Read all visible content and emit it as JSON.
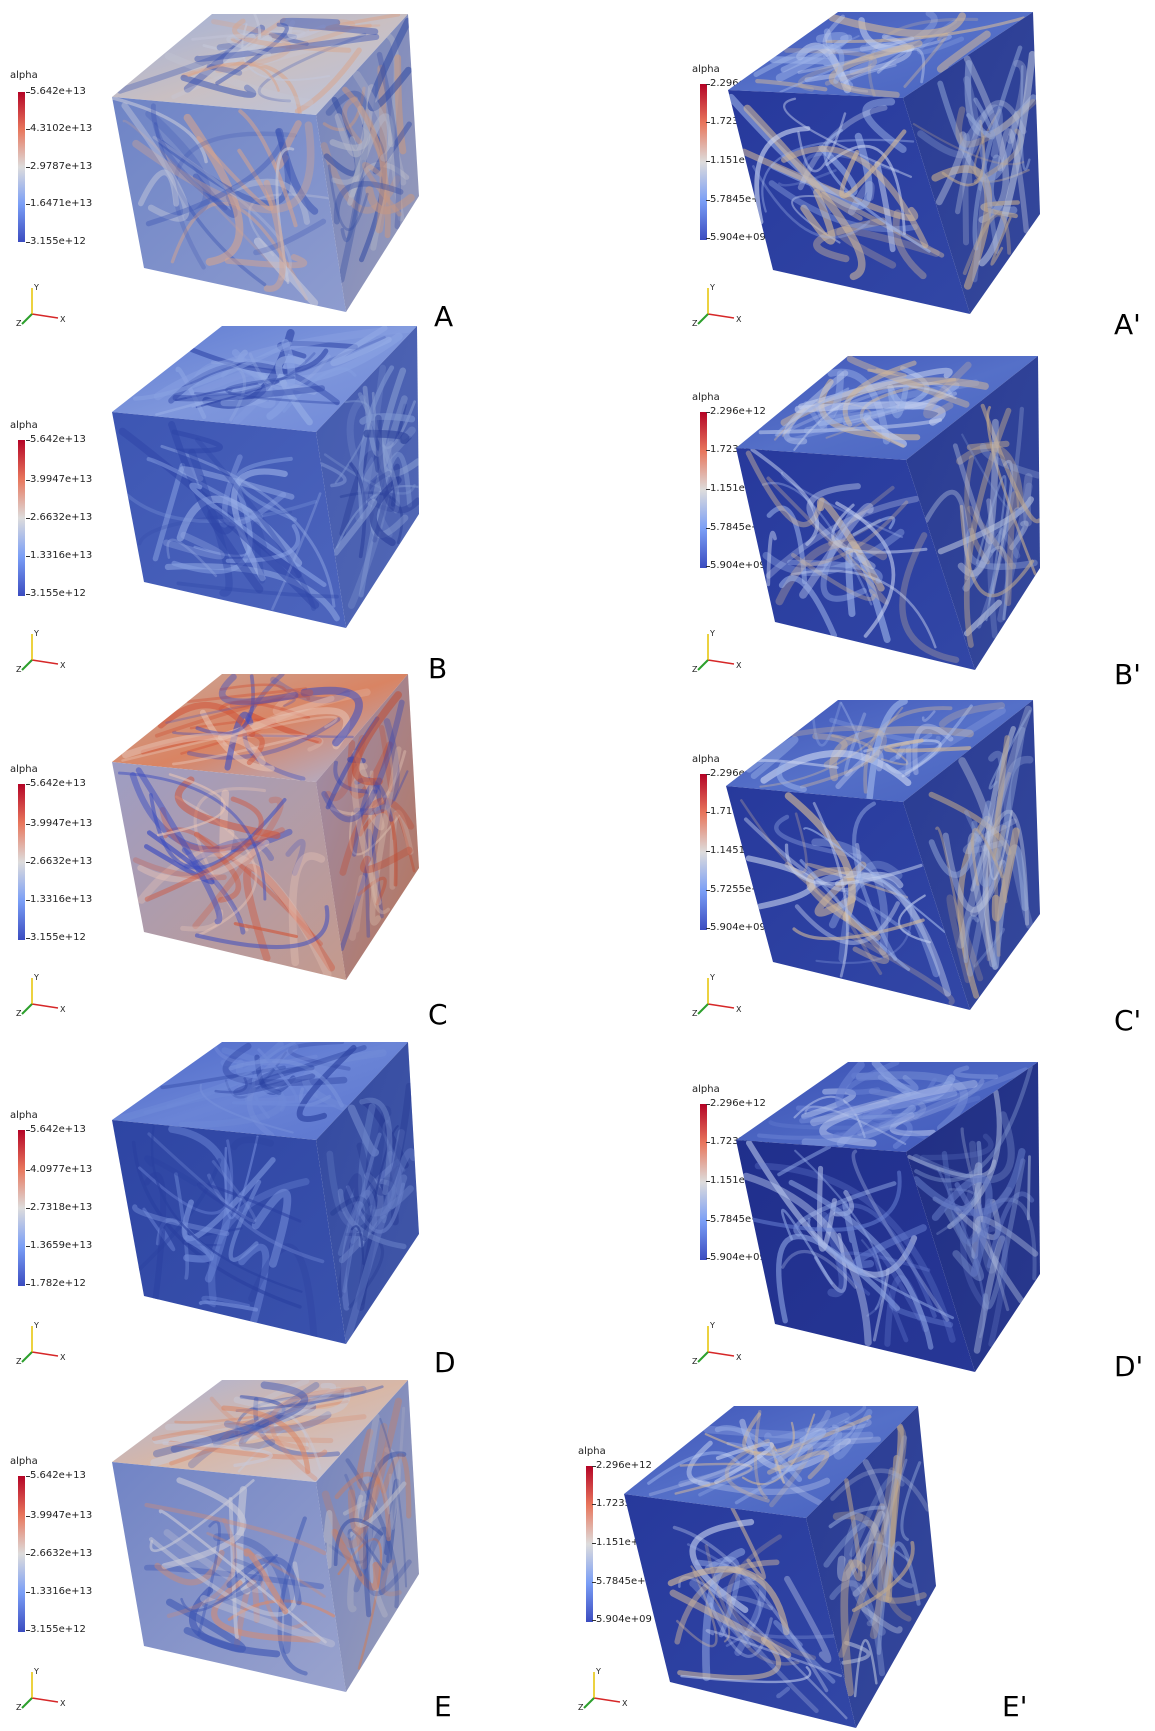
{
  "colors": {
    "cb_high": "#b40426",
    "cb_low": "#3b4cc0",
    "axis_x": "#d62728",
    "axis_y": "#e6c200",
    "axis_z": "#2ca02c"
  },
  "panels": [
    {
      "id": "A",
      "label": "A",
      "field": "warm",
      "colorbar": {
        "title": "alpha",
        "ticks": [
          "5.642e+13",
          "4.3102e+13",
          "2.9787e+13",
          "1.6471e+13",
          "3.155e+12"
        ]
      },
      "axes": {
        "x": "X",
        "y": "Y",
        "z": "Z"
      }
    },
    {
      "id": "A-prime",
      "label": "A'",
      "field": "cool",
      "colorbar": {
        "title": "alpha",
        "ticks": [
          "2.296e+12",
          "1.7235e+12",
          "1.151e+12",
          "5.7845e+11",
          "5.904e+09"
        ]
      },
      "axes": {
        "x": "X",
        "y": "Y",
        "z": "Z"
      }
    },
    {
      "id": "B",
      "label": "B",
      "field": "blue",
      "colorbar": {
        "title": "alpha",
        "ticks": [
          "5.642e+13",
          "3.9947e+13",
          "2.6632e+13",
          "1.3316e+13",
          "3.155e+12"
        ]
      },
      "axes": {
        "x": "X",
        "y": "Y",
        "z": "Z"
      }
    },
    {
      "id": "B-prime",
      "label": "B'",
      "field": "cool",
      "colorbar": {
        "title": "alpha",
        "ticks": [
          "2.296e+12",
          "1.7235e+12",
          "1.151e+12",
          "5.7845e+11",
          "5.904e+09"
        ]
      },
      "axes": {
        "x": "X",
        "y": "Y",
        "z": "Z"
      }
    },
    {
      "id": "C",
      "label": "C",
      "field": "hot",
      "colorbar": {
        "title": "alpha",
        "ticks": [
          "5.642e+13",
          "3.9947e+13",
          "2.6632e+13",
          "1.3316e+13",
          "3.155e+12"
        ]
      },
      "axes": {
        "x": "X",
        "y": "Y",
        "z": "Z"
      }
    },
    {
      "id": "C-prime",
      "label": "C'",
      "field": "cool",
      "colorbar": {
        "title": "alpha",
        "ticks": [
          "2.296e+12",
          "1.7176e+12",
          "1.1451e+12",
          "5.7255e+11",
          "5.904e+09"
        ]
      },
      "axes": {
        "x": "X",
        "y": "Y",
        "z": "Z"
      }
    },
    {
      "id": "D",
      "label": "D",
      "field": "deepblue",
      "colorbar": {
        "title": "alpha",
        "ticks": [
          "5.642e+13",
          "4.0977e+13",
          "2.7318e+13",
          "1.3659e+13",
          "1.782e+12"
        ]
      },
      "axes": {
        "x": "X",
        "y": "Y",
        "z": "Z"
      }
    },
    {
      "id": "D-prime",
      "label": "D'",
      "field": "darkcool",
      "colorbar": {
        "title": "alpha",
        "ticks": [
          "2.296e+12",
          "1.7235e+12",
          "1.151e+12",
          "5.7845e+11",
          "5.904e+09"
        ]
      },
      "axes": {
        "x": "X",
        "y": "Y",
        "z": "Z"
      }
    },
    {
      "id": "E",
      "label": "E",
      "field": "warm2",
      "colorbar": {
        "title": "alpha",
        "ticks": [
          "5.642e+13",
          "3.9947e+13",
          "2.6632e+13",
          "1.3316e+13",
          "3.155e+12"
        ]
      },
      "axes": {
        "x": "X",
        "y": "Y",
        "z": "Z"
      }
    },
    {
      "id": "E-prime",
      "label": "E'",
      "field": "cool",
      "colorbar": {
        "title": "alpha",
        "ticks": [
          "2.296e+12",
          "1.7235e+12",
          "1.151e+12",
          "5.7845e+11",
          "5.904e+09"
        ]
      },
      "axes": {
        "x": "X",
        "y": "Y",
        "z": "Z"
      }
    }
  ]
}
